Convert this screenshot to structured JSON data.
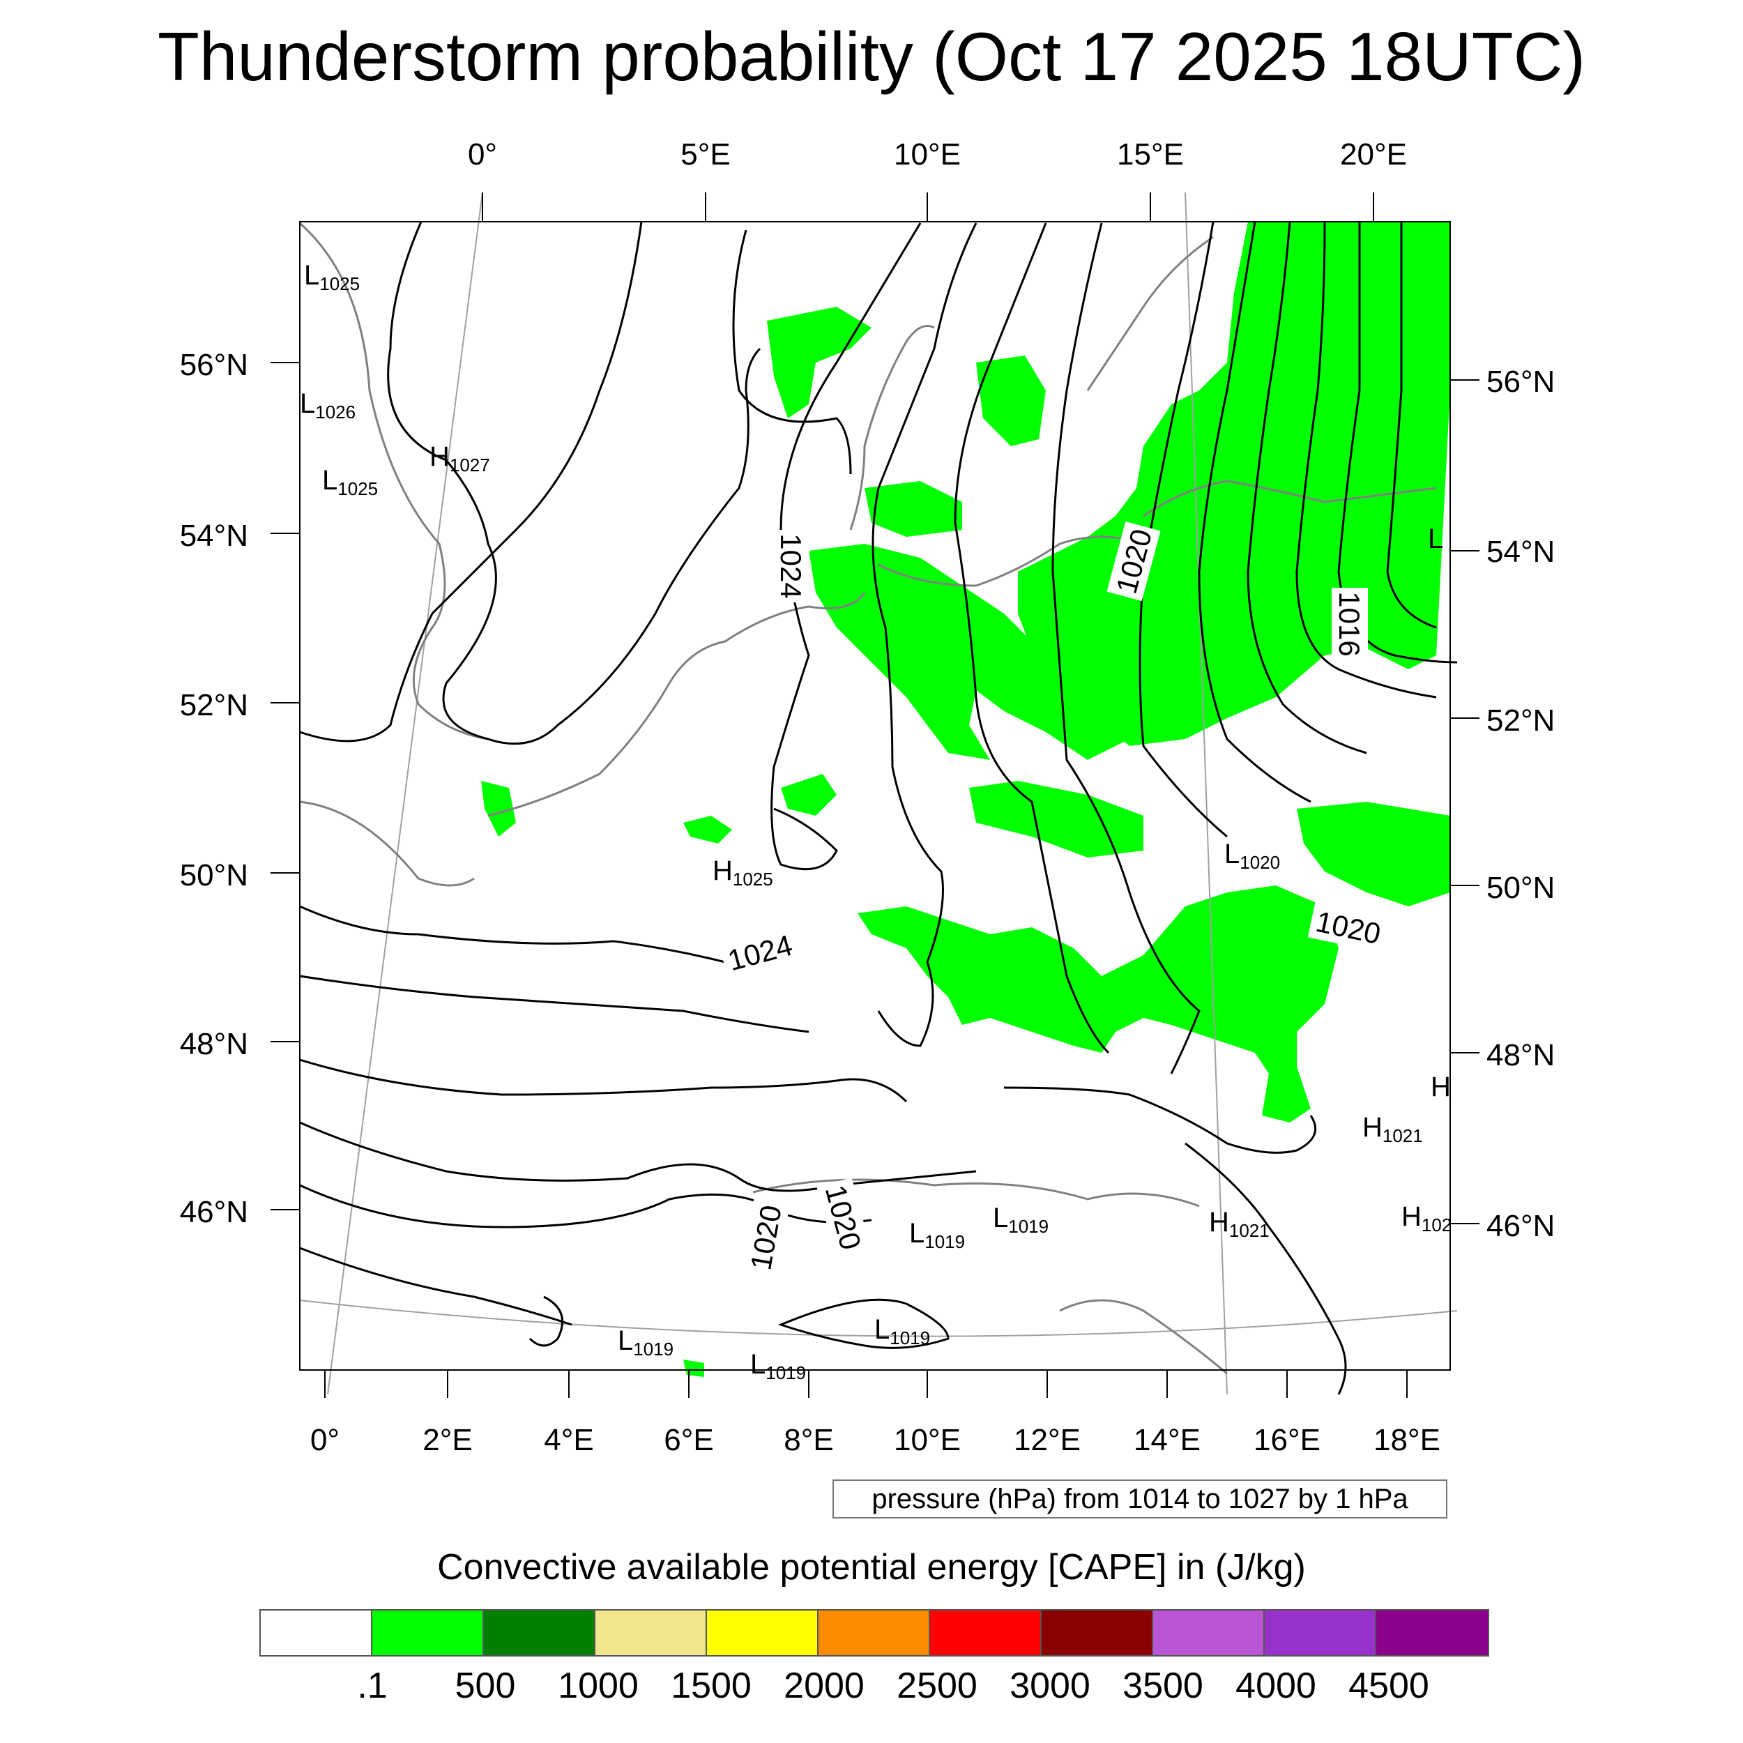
{
  "title": "Thunderstorm probability (Oct 17 2025 18UTC)",
  "axes": {
    "top_lon_ticks": [
      "0°",
      "5°E",
      "10°E",
      "15°E",
      "20°E"
    ],
    "bottom_lon_ticks": [
      "0°",
      "2°E",
      "4°E",
      "6°E",
      "8°E",
      "10°E",
      "12°E",
      "14°E",
      "16°E",
      "18°E"
    ],
    "left_lat_ticks": [
      "56°N",
      "54°N",
      "52°N",
      "50°N",
      "48°N",
      "46°N"
    ],
    "right_lat_ticks": [
      "56°N",
      "54°N",
      "52°N",
      "50°N",
      "48°N",
      "46°N"
    ]
  },
  "pressure_info": "pressure (hPa) from 1014 to 1027 by 1 hPa",
  "isobar_labels": [
    "1024",
    "1024",
    "1020",
    "1016",
    "1020",
    "1020",
    "1020"
  ],
  "pressure_centers": [
    {
      "type": "L",
      "value": "1025"
    },
    {
      "type": "L",
      "value": "1026"
    },
    {
      "type": "L",
      "value": "1025"
    },
    {
      "type": "H",
      "value": "1027"
    },
    {
      "type": "H",
      "value": "1025"
    },
    {
      "type": "L",
      "value": "1020"
    },
    {
      "type": "H",
      "value": "1021"
    },
    {
      "type": "H",
      "value": "1021"
    },
    {
      "type": "H",
      "value": "102"
    },
    {
      "type": "L",
      "value": "1019"
    },
    {
      "type": "L",
      "value": "1019"
    },
    {
      "type": "L",
      "value": "1019"
    },
    {
      "type": "L",
      "value": "1019"
    },
    {
      "type": "L",
      "value": "1019"
    },
    {
      "type": "L",
      "value": ""
    },
    {
      "type": "H",
      "value": ""
    }
  ],
  "colorbar": {
    "title": "Convective available potential energy [CAPE] in (J/kg)",
    "colors": [
      "#ffffff",
      "#00ff00",
      "#008000",
      "#f0e68c",
      "#ffff00",
      "#ff8c00",
      "#ff0000",
      "#8b0000",
      "#ba55d3",
      "#9932cc",
      "#8b008b"
    ],
    "labels": [
      ".1",
      "500",
      "1000",
      "1500",
      "2000",
      "2500",
      "3000",
      "3500",
      "4000",
      "4500"
    ]
  },
  "colors": {
    "cape_fill": "#00ff00",
    "isobar": "#000000",
    "coastline": "#808080",
    "graticule": "#a0a0a0"
  }
}
